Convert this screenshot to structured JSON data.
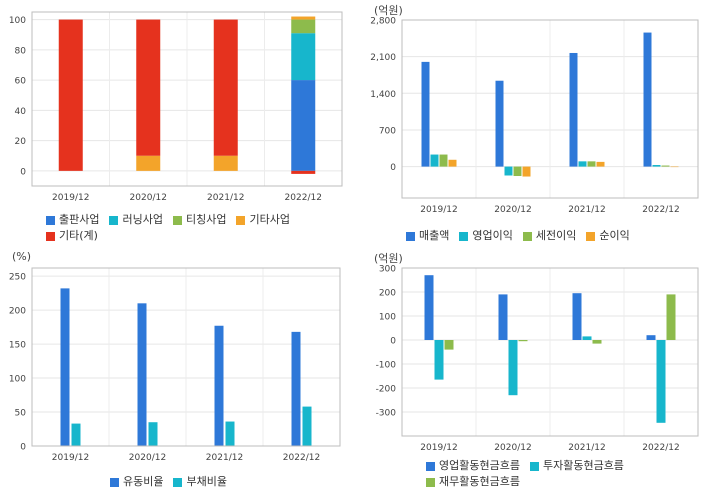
{
  "chart_data": [
    {
      "type": "bar",
      "stacked": true,
      "unit": "",
      "categories": [
        "2019/12",
        "2020/12",
        "2021/12",
        "2022/12"
      ],
      "ylim": [
        -10,
        105
      ],
      "yticks": [
        0,
        20,
        40,
        60,
        80,
        100
      ],
      "legend_rows": [
        [
          0,
          1,
          2,
          3
        ],
        [
          4
        ]
      ],
      "grid": true,
      "series": [
        {
          "name": "출판사업",
          "color": "#2e78d8",
          "values": [
            0,
            0,
            0,
            60
          ]
        },
        {
          "name": "러닝사업",
          "color": "#17b6cc",
          "values": [
            0,
            0,
            0,
            31
          ]
        },
        {
          "name": "티칭사업",
          "color": "#8dbb4c",
          "values": [
            0,
            0,
            0,
            9
          ]
        },
        {
          "name": "기타사업",
          "color": "#f3a42a",
          "values": [
            0,
            10,
            10,
            2
          ]
        },
        {
          "name": "기타(계)",
          "color": "#e5321e",
          "values": [
            100,
            90,
            90,
            -2
          ]
        }
      ]
    },
    {
      "type": "bar",
      "stacked": false,
      "unit": "(억원)",
      "categories": [
        "2019/12",
        "2020/12",
        "2021/12",
        "2022/12"
      ],
      "ylim": [
        -600,
        2800
      ],
      "yticks": [
        0,
        700,
        1400,
        2100,
        2800
      ],
      "legend_rows": [
        [
          0,
          1,
          2,
          3
        ]
      ],
      "grid": true,
      "series": [
        {
          "name": "매출액",
          "color": "#2e78d8",
          "values": [
            2000,
            1640,
            2170,
            2560
          ]
        },
        {
          "name": "영업이익",
          "color": "#17b6cc",
          "values": [
            230,
            -170,
            100,
            30
          ]
        },
        {
          "name": "세전이익",
          "color": "#8dbb4c",
          "values": [
            230,
            -180,
            100,
            20
          ]
        },
        {
          "name": "순이익",
          "color": "#f3a42a",
          "values": [
            130,
            -190,
            90,
            0
          ]
        }
      ]
    },
    {
      "type": "bar",
      "stacked": false,
      "unit": "(%)",
      "categories": [
        "2019/12",
        "2020/12",
        "2021/12",
        "2022/12"
      ],
      "ylim": [
        0,
        262
      ],
      "yticks": [
        0,
        50,
        100,
        150,
        200,
        250
      ],
      "legend_rows": [
        [
          0,
          1
        ]
      ],
      "grid": true,
      "series": [
        {
          "name": "유동비율",
          "color": "#2e78d8",
          "values": [
            232,
            210,
            177,
            168
          ]
        },
        {
          "name": "부채비율",
          "color": "#17b6cc",
          "values": [
            33,
            35,
            36,
            58
          ]
        }
      ]
    },
    {
      "type": "bar",
      "stacked": false,
      "unit": "(억원)",
      "categories": [
        "2019/12",
        "2020/12",
        "2021/12",
        "2022/12"
      ],
      "ylim": [
        -400,
        300
      ],
      "yticks": [
        -300,
        -200,
        -100,
        0,
        100,
        200,
        300
      ],
      "legend_rows": [
        [
          0,
          1
        ],
        [
          2
        ]
      ],
      "grid": true,
      "series": [
        {
          "name": "영업활동현금흐름",
          "color": "#2e78d8",
          "values": [
            270,
            190,
            195,
            20
          ]
        },
        {
          "name": "투자활동현금흐름",
          "color": "#17b6cc",
          "values": [
            -165,
            -230,
            15,
            -345
          ]
        },
        {
          "name": "재무활동현금흐름",
          "color": "#8dbb4c",
          "values": [
            -40,
            -5,
            -15,
            190
          ]
        }
      ]
    }
  ]
}
